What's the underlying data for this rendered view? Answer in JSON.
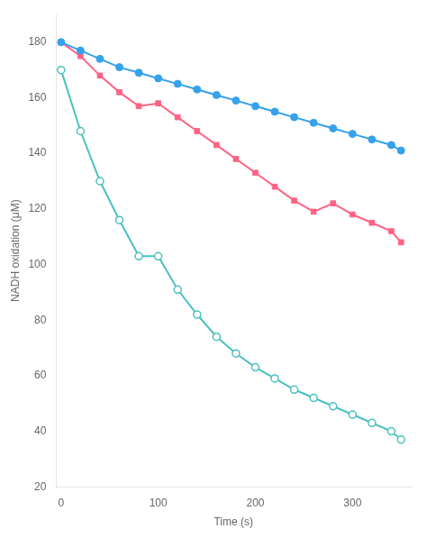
{
  "chart_data": {
    "type": "line",
    "xlabel": "Time (s)",
    "ylabel": "NADH oxidation (μM)",
    "x": [
      0,
      20,
      40,
      60,
      80,
      100,
      120,
      140,
      160,
      180,
      200,
      220,
      240,
      260,
      280,
      300,
      320,
      340,
      350
    ],
    "series": [
      {
        "marker": "circle",
        "values": [
          180,
          177,
          174,
          171,
          169,
          167,
          165,
          163,
          161,
          159,
          157,
          155,
          153,
          151,
          149,
          147,
          145,
          143,
          141
        ]
      },
      {
        "marker": "square",
        "values": [
          180,
          175,
          168,
          162,
          157,
          158,
          153,
          148,
          143,
          138,
          133,
          128,
          123,
          119,
          122,
          118,
          115,
          112,
          108
        ]
      },
      {
        "marker": "open_circle",
        "values": [
          170,
          148,
          130,
          116,
          103,
          103,
          91,
          82,
          74,
          68,
          63,
          59,
          55,
          52,
          49,
          46,
          43,
          40,
          37
        ]
      }
    ],
    "xlim": [
      -5,
      360
    ],
    "xticks": [
      0,
      100,
      200,
      300
    ],
    "ylim": [
      20,
      190
    ],
    "yticks": [
      20,
      40,
      60,
      80,
      100,
      120,
      140,
      160,
      180
    ],
    "grid": false
  }
}
